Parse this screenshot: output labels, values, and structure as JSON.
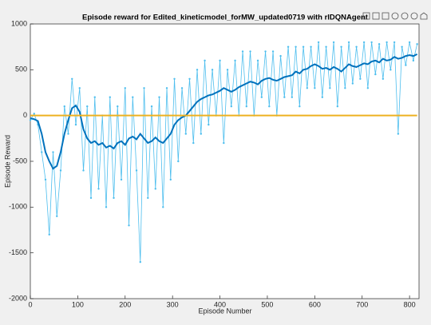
{
  "chart_data": {
    "type": "line",
    "title": "Episode reward for Edited_kineticmodel_forMW_updated0719 with rlDQNAgent",
    "xlabel": "Episode Number",
    "ylabel": "Episode Reward",
    "x": [
      0,
      8,
      16,
      24,
      32,
      40,
      48,
      56,
      64,
      72,
      80,
      88,
      96,
      104,
      112,
      120,
      128,
      136,
      144,
      152,
      160,
      168,
      176,
      184,
      192,
      200,
      208,
      216,
      224,
      232,
      240,
      248,
      256,
      264,
      272,
      280,
      288,
      296,
      304,
      312,
      320,
      328,
      336,
      344,
      352,
      360,
      368,
      376,
      384,
      392,
      400,
      408,
      416,
      424,
      432,
      440,
      448,
      456,
      464,
      472,
      480,
      488,
      496,
      504,
      512,
      520,
      528,
      536,
      544,
      552,
      560,
      568,
      576,
      584,
      592,
      600,
      608,
      616,
      624,
      632,
      640,
      648,
      656,
      664,
      672,
      680,
      688,
      696,
      704,
      712,
      720,
      728,
      736,
      744,
      752,
      760,
      768,
      776,
      784,
      792,
      800,
      808,
      816
    ],
    "series": [
      {
        "color": "#4dbeee",
        "markers": true,
        "width": 0.8,
        "values": [
          -50,
          20,
          -100,
          -400,
          -700,
          -1300,
          -400,
          -1100,
          -600,
          100,
          -200,
          400,
          -100,
          300,
          -600,
          100,
          -900,
          200,
          -800,
          0,
          -1000,
          200,
          -900,
          100,
          -700,
          300,
          -1200,
          200,
          -600,
          -1600,
          300,
          -900,
          100,
          -800,
          200,
          -1000,
          300,
          -700,
          400,
          -500,
          300,
          -200,
          400,
          -300,
          500,
          -200,
          600,
          -100,
          500,
          0,
          600,
          -300,
          500,
          100,
          600,
          0,
          700,
          100,
          700,
          0,
          600,
          200,
          700,
          100,
          700,
          0,
          650,
          200,
          750,
          200,
          750,
          100,
          750,
          300,
          750,
          300,
          800,
          200,
          750,
          300,
          800,
          100,
          750,
          300,
          800,
          350,
          750,
          400,
          800,
          300,
          800,
          450,
          780,
          400,
          800,
          500,
          800,
          -200,
          750,
          550,
          800,
          600,
          780
        ]
      },
      {
        "color": "#0072bd",
        "markers": false,
        "width": 2,
        "values": [
          -30,
          -40,
          -60,
          -200,
          -400,
          -500,
          -580,
          -550,
          -400,
          -200,
          -50,
          80,
          110,
          40,
          -150,
          -250,
          -300,
          -280,
          -320,
          -300,
          -350,
          -330,
          -360,
          -300,
          -280,
          -320,
          -250,
          -230,
          -260,
          -200,
          -250,
          -300,
          -280,
          -240,
          -280,
          -300,
          -250,
          -200,
          -100,
          -50,
          -20,
          0,
          50,
          100,
          150,
          180,
          200,
          220,
          230,
          250,
          270,
          300,
          280,
          260,
          280,
          310,
          330,
          350,
          370,
          360,
          340,
          380,
          400,
          410,
          390,
          380,
          400,
          420,
          430,
          440,
          480,
          460,
          500,
          510,
          540,
          560,
          540,
          510,
          520,
          500,
          530,
          510,
          480,
          520,
          560,
          540,
          530,
          550,
          570,
          560,
          590,
          600,
          580,
          620,
          600,
          610,
          640,
          620,
          630,
          650,
          660,
          650,
          670
        ]
      },
      {
        "color": "#edb120",
        "markers": false,
        "width": 2,
        "values": [
          0,
          0,
          0,
          0,
          0,
          0,
          0,
          0,
          0,
          0,
          0,
          0,
          0,
          0,
          0,
          0,
          0,
          0,
          0,
          0,
          0,
          0,
          0,
          0,
          0,
          0,
          0,
          0,
          0,
          0,
          0,
          0,
          0,
          0,
          0,
          0,
          0,
          0,
          0,
          0,
          0,
          0,
          0,
          0,
          0,
          0,
          0,
          0,
          0,
          0,
          0,
          0,
          0,
          0,
          0,
          0,
          0,
          0,
          0,
          0,
          0,
          0,
          0,
          0,
          0,
          0,
          0,
          0,
          0,
          0,
          0,
          0,
          0,
          0,
          0,
          0,
          0,
          0,
          0,
          0,
          0,
          0,
          0,
          0,
          0,
          0,
          0,
          0,
          0,
          0,
          0,
          0,
          0,
          0,
          0,
          0,
          0,
          0,
          0,
          0,
          0,
          0,
          0
        ]
      }
    ],
    "xlim": [
      0,
      820
    ],
    "xticks": [
      0,
      100,
      200,
      300,
      400,
      500,
      600,
      700,
      800
    ],
    "ylim": [
      -2000,
      1000
    ],
    "yticks": [
      -2000,
      -1500,
      -1000,
      -500,
      0,
      500,
      1000
    ]
  }
}
